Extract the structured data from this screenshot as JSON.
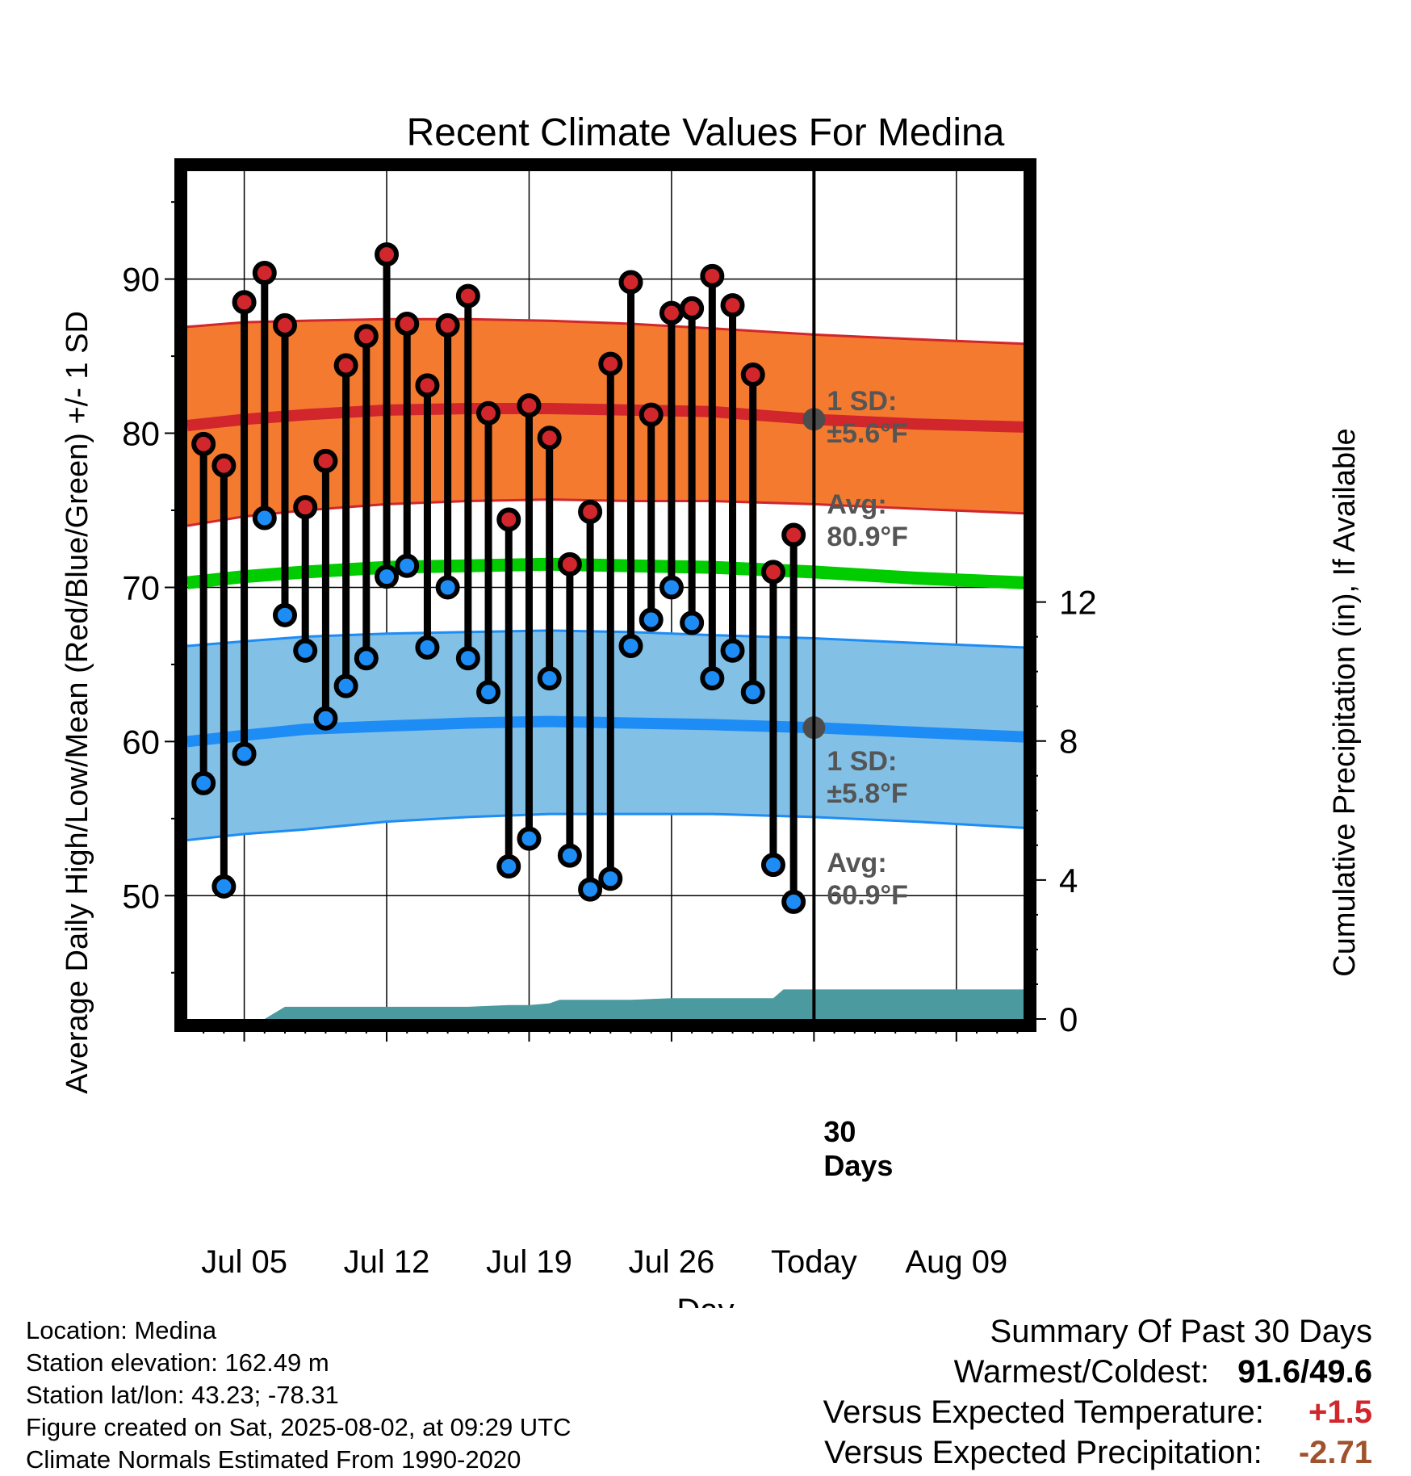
{
  "chart_data": {
    "type": "line",
    "title": "Recent Climate Values For Medina",
    "xlabel": "Day",
    "ylabel_left": "Average Daily High/Low/Mean (Red/Blue/Green) +/- 1 SD",
    "ylabel_right": "Cumulative Precipitation (in), If Available",
    "ylim_left": [
      42,
      97
    ],
    "ylim_right": [
      0,
      24.4
    ],
    "left_ticks": [
      50,
      60,
      70,
      80,
      90
    ],
    "right_ticks": [
      0,
      4,
      8,
      12
    ],
    "x_ticks": [
      {
        "day": 5,
        "label": "Jul 05"
      },
      {
        "day": 12,
        "label": "Jul 12"
      },
      {
        "day": 19,
        "label": "Jul 19"
      },
      {
        "day": 26,
        "label": "Jul 26"
      },
      {
        "day": 33,
        "label": "Today"
      },
      {
        "day": 40,
        "label": "Aug 09"
      }
    ],
    "xlim": [
      2.2,
      43.3
    ],
    "today_day": 33,
    "today_label_line1": "30",
    "today_label_line2": "Days",
    "daily_obs": {
      "days": [
        3,
        4,
        5,
        6,
        7,
        8,
        9,
        10,
        11,
        12,
        13,
        14,
        15,
        16,
        17,
        18,
        19,
        20,
        21,
        22,
        23,
        24,
        25,
        26,
        27,
        28,
        29,
        30,
        31,
        32
      ],
      "highs": [
        79.3,
        77.9,
        88.5,
        90.4,
        87.0,
        75.2,
        78.2,
        84.4,
        86.3,
        91.6,
        87.1,
        83.1,
        87.0,
        88.9,
        81.3,
        74.4,
        81.8,
        79.7,
        71.5,
        74.9,
        84.5,
        89.8,
        81.2,
        87.8,
        88.1,
        90.2,
        88.3,
        83.8,
        71.0,
        73.4
      ],
      "lows": [
        57.3,
        50.6,
        59.2,
        74.5,
        68.2,
        65.9,
        61.5,
        63.6,
        65.4,
        70.7,
        71.4,
        66.1,
        70.0,
        65.4,
        63.2,
        51.9,
        53.7,
        64.1,
        52.6,
        50.4,
        51.1,
        66.2,
        67.9,
        70.0,
        67.7,
        64.1,
        65.9,
        63.2,
        52.0,
        49.6
      ]
    },
    "normals": {
      "days": [
        2.2,
        5,
        8,
        12,
        16,
        20,
        24,
        28,
        33,
        38,
        43.3
      ],
      "high_avg": [
        80.5,
        80.9,
        81.2,
        81.5,
        81.6,
        81.6,
        81.5,
        81.4,
        80.9,
        80.6,
        80.4
      ],
      "high_upper": [
        86.9,
        87.2,
        87.3,
        87.4,
        87.4,
        87.3,
        87.1,
        86.8,
        86.4,
        86.1,
        85.8
      ],
      "high_lower": [
        74.0,
        74.6,
        75.0,
        75.4,
        75.6,
        75.7,
        75.6,
        75.6,
        75.4,
        75.1,
        74.8
      ],
      "mean_avg": [
        70.3,
        70.7,
        71.0,
        71.3,
        71.4,
        71.5,
        71.4,
        71.3,
        71.0,
        70.6,
        70.3
      ],
      "low_avg": [
        60.0,
        60.4,
        60.8,
        61.0,
        61.2,
        61.3,
        61.2,
        61.1,
        60.9,
        60.6,
        60.3
      ],
      "low_upper": [
        66.2,
        66.5,
        66.8,
        67.0,
        67.1,
        67.2,
        67.1,
        66.9,
        66.7,
        66.4,
        66.1
      ],
      "low_lower": [
        53.6,
        54.0,
        54.3,
        54.8,
        55.1,
        55.3,
        55.3,
        55.3,
        55.1,
        54.8,
        54.4
      ]
    },
    "precip": {
      "days": [
        2.2,
        3,
        4,
        5,
        6,
        7,
        7.5,
        8,
        10,
        12,
        14,
        16,
        18,
        19,
        20,
        20.5,
        22,
        24,
        26,
        28,
        29,
        30,
        31,
        31.5,
        32,
        33,
        43.3
      ],
      "values": [
        0,
        0,
        0,
        0,
        0,
        0.35,
        0.35,
        0.35,
        0.35,
        0.35,
        0.35,
        0.35,
        0.4,
        0.4,
        0.45,
        0.55,
        0.55,
        0.55,
        0.6,
        0.6,
        0.6,
        0.6,
        0.6,
        0.85,
        0.85,
        0.85,
        0.85
      ]
    },
    "annotations": {
      "high_sd_line1": "1 SD:",
      "high_sd_line2": "±5.6°F",
      "high_avg_line1": "Avg:",
      "high_avg_line2": "80.9°F",
      "high_avg_value": 80.9,
      "low_sd_line1": "1 SD:",
      "low_sd_line2": "±5.8°F",
      "low_avg_line1": "Avg:",
      "low_avg_line2": "60.9°F",
      "low_avg_value": 60.9
    },
    "colors": {
      "high_band": "#f47a30",
      "high_line": "#d0262c",
      "low_band": "#83c0e6",
      "low_line": "#1e8cf5",
      "mean_line": "#00cc00",
      "precip": "#4a9aa0",
      "high_dot": "#d0262c",
      "low_dot": "#1e8cf5",
      "avg_marker": "#4d4d4d",
      "positive": "#d0262c",
      "precip_text": "#a0522d"
    }
  },
  "footer": {
    "location": "Location: Medina",
    "elevation": "Station elevation: 162.49 m",
    "latlon": "Station lat/lon: 43.23; -78.31",
    "created": "Figure created on Sat, 2025-08-02, at 09:29 UTC",
    "normals": "Climate Normals Estimated From 1990-2020"
  },
  "summary": {
    "title": "Summary Of Past 30 Days",
    "warm_cold_label": "Warmest/Coldest:",
    "warm_cold_value": "91.6/49.6",
    "temp_label": "Versus Expected Temperature:",
    "temp_value": "+1.5",
    "precip_label": "Versus Expected Precipitation:",
    "precip_value": "-2.71"
  }
}
